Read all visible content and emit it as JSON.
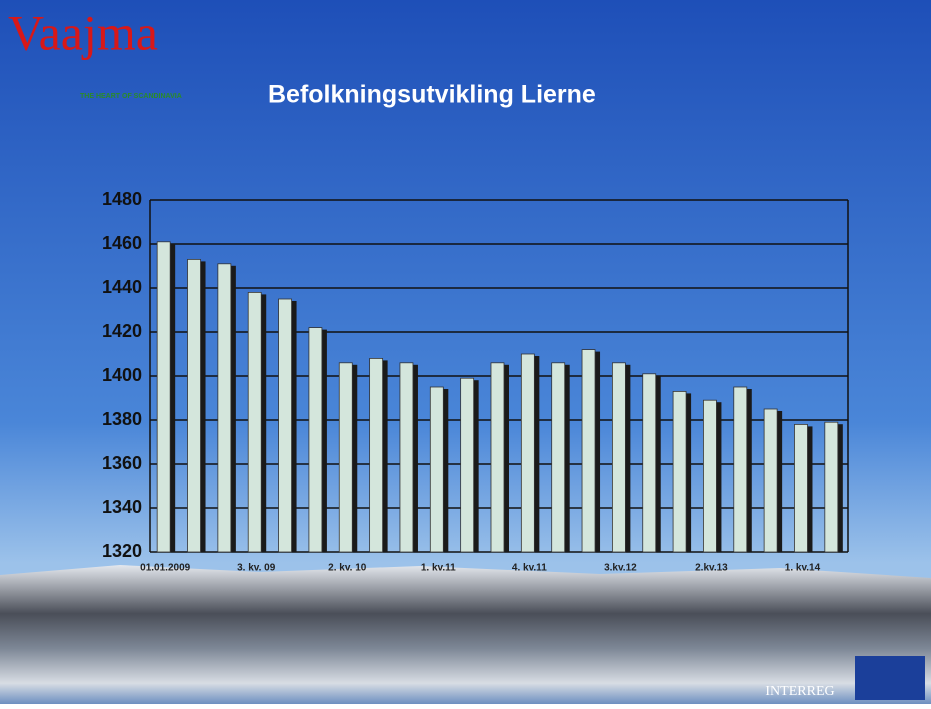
{
  "header": {
    "logo": "Vaajma",
    "tagline": "THE HEART OF SCANDINAVIA"
  },
  "footer": {
    "partner": "INTERREG"
  },
  "chart_data": {
    "type": "bar",
    "title": "Befolkningsutvikling Lierne",
    "categories": [
      "01.01.2009",
      null,
      null,
      "3. kv. 09",
      null,
      null,
      "2. kv. 10",
      null,
      null,
      "1. kv.11",
      null,
      null,
      "4. kv.11",
      null,
      null,
      "3.kv.12",
      null,
      null,
      "2.kv.13",
      null,
      null,
      "1. kv.14",
      null
    ],
    "values": [
      1461,
      1453,
      1451,
      1438,
      1435,
      1422,
      1406,
      1408,
      1406,
      1395,
      1399,
      1406,
      1410,
      1406,
      1412,
      1406,
      1401,
      1393,
      1389,
      1395,
      1385,
      1378,
      1379
    ],
    "color": "#d4e6dc",
    "ylim": [
      1320,
      1480
    ],
    "yticks": [
      1320,
      1340,
      1360,
      1380,
      1400,
      1420,
      1440,
      1460,
      1480
    ],
    "grid": true
  }
}
